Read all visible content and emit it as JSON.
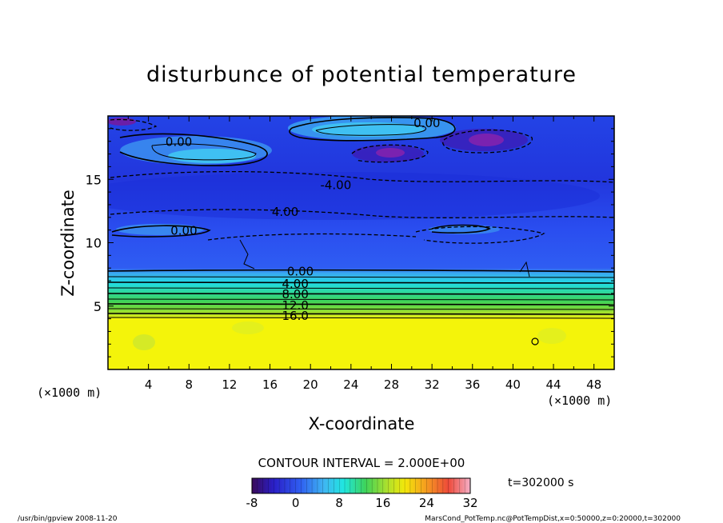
{
  "chart_data": {
    "type": "heatmap",
    "title": "disturbunce of potential temperature",
    "xlabel": "X-coordinate",
    "ylabel": "Z-coordinate",
    "x_unit_left": "(×1000 m)",
    "x_unit_right": "(×1000 m)",
    "xlim": [
      0,
      50
    ],
    "ylim": [
      0,
      20
    ],
    "x_ticks": [
      "4",
      "8",
      "12",
      "16",
      "20",
      "24",
      "28",
      "32",
      "36",
      "40",
      "44",
      "48"
    ],
    "x_tick_values": [
      4,
      8,
      12,
      16,
      20,
      24,
      28,
      32,
      36,
      40,
      44,
      48
    ],
    "y_ticks": [
      "5",
      "10",
      "15"
    ],
    "y_tick_values": [
      5,
      10,
      15
    ],
    "contour_interval_text": "CONTOUR INTERVAL = 2.000E+00",
    "time_text": "t=302000 s",
    "contour_labels": [
      {
        "text": "0.00",
        "x": 31.5,
        "z": 19.5
      },
      {
        "text": "0.00",
        "x": 7,
        "z": 18
      },
      {
        "text": "-4.00",
        "x": 22.5,
        "z": 14.6
      },
      {
        "text": "4.00",
        "x": 17.5,
        "z": 12.5
      },
      {
        "text": "0.00",
        "x": 7.5,
        "z": 11
      },
      {
        "text": "0.00",
        "x": 19,
        "z": 7.8
      },
      {
        "text": "4.00",
        "x": 18.5,
        "z": 6.8
      },
      {
        "text": "8.00",
        "x": 18.5,
        "z": 6.0
      },
      {
        "text": "12.0",
        "x": 18.5,
        "z": 5.1
      },
      {
        "text": "16.0",
        "x": 18.5,
        "z": 4.3
      }
    ],
    "colorbar": {
      "min": -8,
      "max": 32,
      "tick_labels": [
        "-8",
        "0",
        "8",
        "16",
        "24",
        "32"
      ],
      "tick_values": [
        -8,
        0,
        8,
        16,
        24,
        32
      ]
    },
    "colors": {
      "deep_purple": "#6a1fa8",
      "dark_blue": "#1c2fd8",
      "blue": "#2f5df0",
      "light_blue": "#3fb6f2",
      "cyan": "#20e6e0",
      "green": "#3ed35a",
      "yellow_green": "#aee02c",
      "yellow": "#f4f40a"
    }
  },
  "footer": {
    "left": "/usr/bin/gpview   2008-11-20",
    "right": "MarsCond_PotTemp.nc@PotTempDist,x=0:50000,z=0:20000,t=302000"
  }
}
